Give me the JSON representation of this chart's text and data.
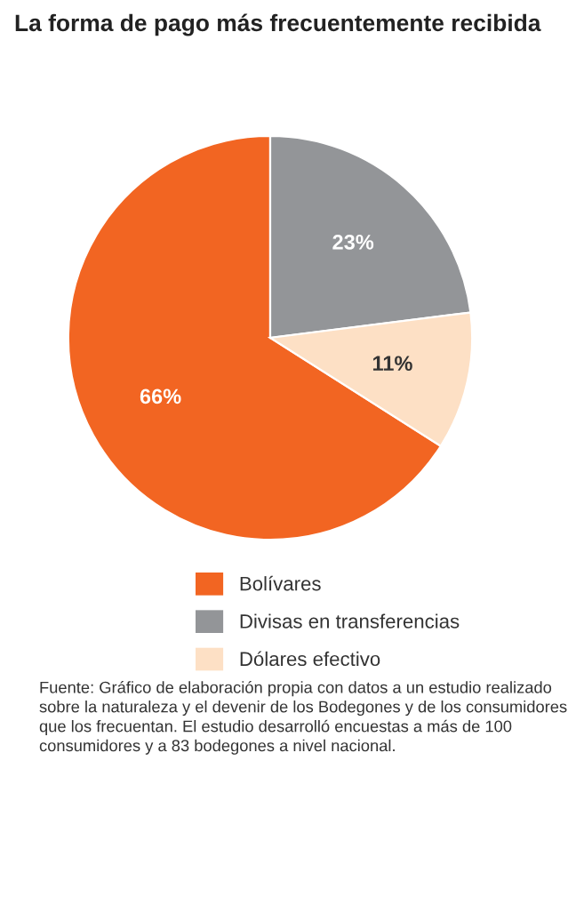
{
  "chart_data": {
    "type": "pie",
    "title": "La forma de pago más frecuentemente recibida",
    "categories": [
      "Bolívares",
      "Divisas en transferencias",
      "Dólares efectivo"
    ],
    "values": [
      66,
      23,
      11
    ],
    "value_labels": [
      "66%",
      "23%",
      "11%"
    ],
    "colors": [
      "#f26522",
      "#939598",
      "#fde0c5"
    ],
    "legend": "bottom",
    "annotations": [
      "Fuente: Gráfico de elaboración propia con datos a un estudio realizado sobre la naturaleza y el devenir de los Bodegones y de los consumidores que los frecuentan. El estudio desarrolló encuestas a más de 100 consumidores y a 83 bodegones a nivel nacional."
    ]
  }
}
